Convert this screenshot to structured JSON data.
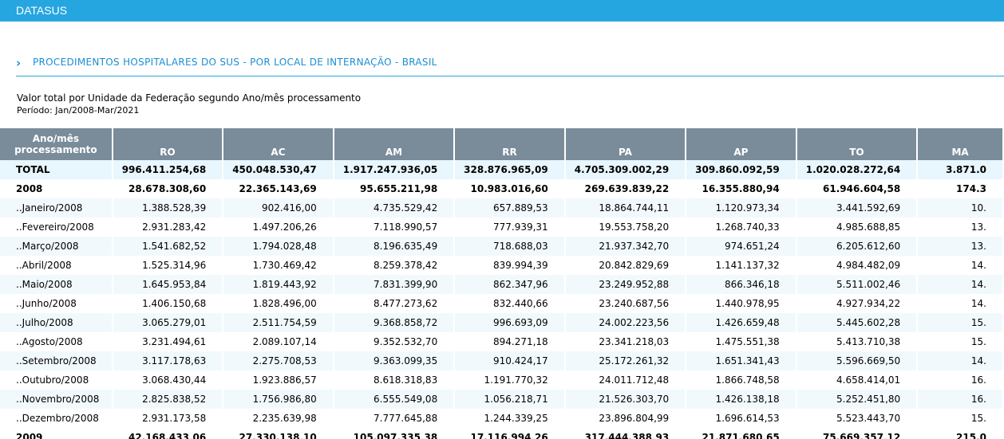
{
  "header": {
    "brand": "DATASUS"
  },
  "section": {
    "chevron": "›",
    "title": "PROCEDIMENTOS HOSPITALARES DO SUS - POR LOCAL DE INTERNAÇÃO - BRASIL"
  },
  "report": {
    "subtitle": "Valor total por Unidade da Federação segundo Ano/mês processamento",
    "period_label": "Período:",
    "period_value": "Jan/2008-Mar/2021"
  },
  "table": {
    "row_header_line1": "Ano/mês",
    "row_header_line2": "processamento",
    "columns": [
      "RO",
      "AC",
      "AM",
      "RR",
      "PA",
      "AP",
      "TO",
      "MA"
    ],
    "rows": [
      {
        "label": "TOTAL",
        "kind": "total",
        "values": [
          "996.411.254,68",
          "450.048.530,47",
          "1.917.247.936,05",
          "328.876.965,09",
          "4.705.309.002,29",
          "309.860.092,59",
          "1.020.028.272,64",
          "3.871.0"
        ]
      },
      {
        "label": "2008",
        "kind": "year",
        "values": [
          "28.678.308,60",
          "22.365.143,69",
          "95.655.211,98",
          "10.983.016,60",
          "269.639.839,22",
          "16.355.880,94",
          "61.946.604,58",
          "174.3"
        ]
      },
      {
        "label": "..Janeiro/2008",
        "kind": "alt",
        "values": [
          "1.388.528,39",
          "902.416,00",
          "4.735.529,42",
          "657.889,53",
          "18.864.744,11",
          "1.120.973,34",
          "3.441.592,69",
          "10."
        ]
      },
      {
        "label": "..Fevereiro/2008",
        "kind": "plain",
        "values": [
          "2.931.283,42",
          "1.497.206,26",
          "7.118.990,57",
          "777.939,31",
          "19.553.758,20",
          "1.268.740,33",
          "4.985.688,85",
          "13."
        ]
      },
      {
        "label": "..Março/2008",
        "kind": "alt",
        "values": [
          "1.541.682,52",
          "1.794.028,48",
          "8.196.635,49",
          "718.688,03",
          "21.937.342,70",
          "974.651,24",
          "6.205.612,60",
          "13."
        ]
      },
      {
        "label": "..Abril/2008",
        "kind": "plain",
        "values": [
          "1.525.314,96",
          "1.730.469,42",
          "8.259.378,42",
          "839.994,39",
          "20.842.829,69",
          "1.141.137,32",
          "4.984.482,09",
          "14."
        ]
      },
      {
        "label": "..Maio/2008",
        "kind": "alt",
        "values": [
          "1.645.953,84",
          "1.819.443,92",
          "7.831.399,90",
          "862.347,96",
          "23.249.952,88",
          "866.346,18",
          "5.511.002,46",
          "14."
        ]
      },
      {
        "label": "..Junho/2008",
        "kind": "plain",
        "values": [
          "1.406.150,68",
          "1.828.496,00",
          "8.477.273,62",
          "832.440,66",
          "23.240.687,56",
          "1.440.978,95",
          "4.927.934,22",
          "14."
        ]
      },
      {
        "label": "..Julho/2008",
        "kind": "alt",
        "values": [
          "3.065.279,01",
          "2.511.754,59",
          "9.368.858,72",
          "996.693,09",
          "24.002.223,56",
          "1.426.659,48",
          "5.445.602,28",
          "15."
        ]
      },
      {
        "label": "..Agosto/2008",
        "kind": "plain",
        "values": [
          "3.231.494,61",
          "2.089.107,14",
          "9.352.532,70",
          "894.271,18",
          "23.341.218,03",
          "1.475.551,38",
          "5.413.710,38",
          "15."
        ]
      },
      {
        "label": "..Setembro/2008",
        "kind": "alt",
        "values": [
          "3.117.178,63",
          "2.275.708,53",
          "9.363.099,35",
          "910.424,17",
          "25.172.261,32",
          "1.651.341,43",
          "5.596.669,50",
          "14."
        ]
      },
      {
        "label": "..Outubro/2008",
        "kind": "plain",
        "values": [
          "3.068.430,44",
          "1.923.886,57",
          "8.618.318,83",
          "1.191.770,32",
          "24.011.712,48",
          "1.866.748,58",
          "4.658.414,01",
          "16."
        ]
      },
      {
        "label": "..Novembro/2008",
        "kind": "alt",
        "values": [
          "2.825.838,52",
          "1.756.986,80",
          "6.555.549,08",
          "1.056.218,71",
          "21.526.303,70",
          "1.426.138,18",
          "5.252.451,80",
          "16."
        ]
      },
      {
        "label": "..Dezembro/2008",
        "kind": "plain",
        "values": [
          "2.931.173,58",
          "2.235.639,98",
          "7.777.645,88",
          "1.244.339,25",
          "23.896.804,99",
          "1.696.614,53",
          "5.523.443,70",
          "15."
        ]
      },
      {
        "label": "2009",
        "kind": "year",
        "values": [
          "42.168.433,06",
          "27.330.138,10",
          "105.097.335,38",
          "17.116.994,26",
          "317.444.388,93",
          "21.871.680,65",
          "75.669.357,12",
          "215.0"
        ]
      }
    ]
  }
}
